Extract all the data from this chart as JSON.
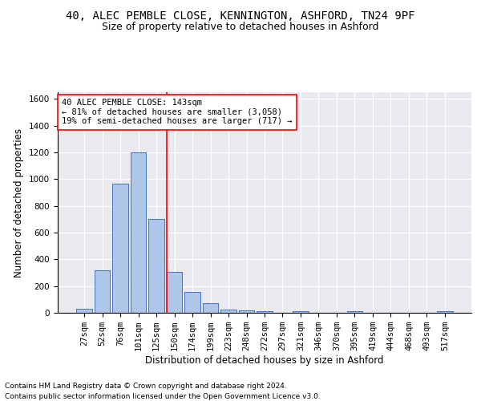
{
  "title_line1": "40, ALEC PEMBLE CLOSE, KENNINGTON, ASHFORD, TN24 9PF",
  "title_line2": "Size of property relative to detached houses in Ashford",
  "xlabel": "Distribution of detached houses by size in Ashford",
  "ylabel": "Number of detached properties",
  "bar_labels": [
    "27sqm",
    "52sqm",
    "76sqm",
    "101sqm",
    "125sqm",
    "150sqm",
    "174sqm",
    "199sqm",
    "223sqm",
    "248sqm",
    "272sqm",
    "297sqm",
    "321sqm",
    "346sqm",
    "370sqm",
    "395sqm",
    "419sqm",
    "444sqm",
    "468sqm",
    "493sqm",
    "517sqm"
  ],
  "bar_values": [
    30,
    320,
    965,
    1200,
    700,
    305,
    155,
    70,
    25,
    20,
    15,
    0,
    15,
    0,
    0,
    10,
    0,
    0,
    0,
    0,
    10
  ],
  "bar_color": "#aec6e8",
  "bar_edge_color": "#4472c4",
  "vline_x": 4.57,
  "vline_color": "red",
  "annotation_text": "40 ALEC PEMBLE CLOSE: 143sqm\n← 81% of detached houses are smaller (3,058)\n19% of semi-detached houses are larger (717) →",
  "annotation_box_color": "white",
  "annotation_box_edge_color": "red",
  "ylim": [
    0,
    1650
  ],
  "yticks": [
    0,
    200,
    400,
    600,
    800,
    1000,
    1200,
    1400,
    1600
  ],
  "bg_color": "#e8eaf0",
  "footer_line1": "Contains HM Land Registry data © Crown copyright and database right 2024.",
  "footer_line2": "Contains public sector information licensed under the Open Government Licence v3.0.",
  "title_fontsize": 10,
  "subtitle_fontsize": 9,
  "axis_label_fontsize": 8.5,
  "tick_fontsize": 7.5,
  "annotation_fontsize": 7.5,
  "footer_fontsize": 6.5
}
